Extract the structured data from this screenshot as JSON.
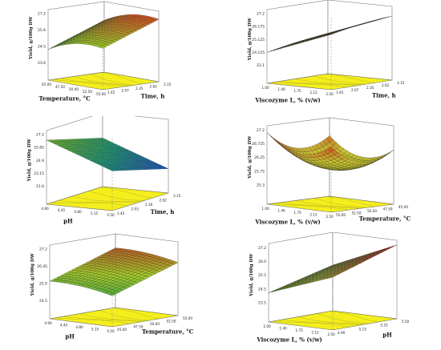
{
  "figure": {
    "panels": [
      {
        "id": "p1",
        "zlabel": "Yield, g/100g DW",
        "xlabel": "Temperature, °C",
        "ylabel": "Time, h",
        "zticks": [
          "27.2",
          "25.6",
          "24.5",
          "23.6"
        ],
        "xticks": [
          "55.00",
          "52.50",
          "50.00",
          "47.50",
          "45.00"
        ],
        "yticks": [
          "1.45",
          "2.07",
          "2.35",
          "2.62",
          "3.15"
        ],
        "colors": {
          "high": "#d9501c",
          "mid": "#9fcf25",
          "low": "#1d9a4e"
        },
        "chart_data": {
          "type": "surface",
          "zlim": [
            23.6,
            27.2
          ],
          "xlim": [
            45,
            55
          ],
          "ylim": [
            1.45,
            3.15
          ]
        }
      },
      {
        "id": "p2",
        "zlabel": "Yield, g/100g DW",
        "xlabel": "Viscozyme L, % (v/w)",
        "ylabel": "Time, h",
        "zticks": [
          "27.2",
          "26.175",
          "25.125",
          "24.125",
          "23.1"
        ],
        "xticks": [
          "2.50",
          "2.12",
          "1.75",
          "1.40",
          "1.00"
        ],
        "yticks": [
          "1.45",
          "2.07",
          "2.35",
          "2.62",
          "3.15"
        ],
        "colors": {
          "high": "#cc3b1c",
          "mid": "#b9d235",
          "low": "#1f9f6a"
        },
        "chart_data": {
          "type": "surface",
          "zlim": [
            23.1,
            27.2
          ],
          "xlim": [
            1.0,
            2.5
          ],
          "ylim": [
            1.45,
            3.15
          ]
        }
      },
      {
        "id": "p3",
        "zlabel": "Yield, g/100g DW",
        "xlabel": "pH",
        "ylabel": "Time, h",
        "zticks": [
          "27.2",
          "25.65",
          "24.9",
          "23.15",
          "21.6"
        ],
        "xticks": [
          "5.50",
          "5.15",
          "4.80",
          "4.45",
          "4.90"
        ],
        "yticks": [
          "1.45",
          "2.03",
          "2.30",
          "2.62",
          "3.15"
        ],
        "colors": {
          "high": "#7fc221",
          "mid": "#19a37a",
          "low": "#1a4bd8"
        },
        "chart_data": {
          "type": "surface",
          "zlim": [
            21.6,
            27.2
          ],
          "xlim": [
            4.45,
            5.5
          ],
          "ylim": [
            1.45,
            3.15
          ]
        }
      },
      {
        "id": "p4",
        "zlabel": "Yield, g/100g DW",
        "xlabel": "Viscozyme L, % (v/w)",
        "ylabel": "Temperature, °C",
        "zticks": [
          "27.2",
          "26.725",
          "26.25",
          "25.75",
          "25.3"
        ],
        "xticks": [
          "2.50",
          "2.12",
          "1.75",
          "1.40",
          "1.00"
        ],
        "yticks": [
          "55.00",
          "52.50",
          "50.00",
          "47.50",
          "45.00"
        ],
        "colors": {
          "high": "#c9321c",
          "mid": "#c9c430",
          "low": "#9aa420"
        },
        "chart_data": {
          "type": "surface",
          "zlim": [
            25.3,
            27.2
          ],
          "xlim": [
            1.0,
            2.5
          ],
          "ylim": [
            45,
            55
          ]
        }
      },
      {
        "id": "p5",
        "zlabel": "Yield, g/100g DW",
        "xlabel": "pH",
        "ylabel": "Temperature, °C",
        "zticks": [
          "27.2",
          "26.45",
          "25.0",
          "24.5"
        ],
        "xticks": [
          "5.50",
          "5.15",
          "4.80",
          "4.45",
          "4.90"
        ],
        "yticks": [
          "45.00",
          "47.50",
          "50.00",
          "52.50",
          "55.00"
        ],
        "colors": {
          "high": "#c63a1d",
          "mid": "#a8cf27",
          "low": "#1c9a4c"
        },
        "chart_data": {
          "type": "surface",
          "zlim": [
            24.5,
            27.2
          ],
          "xlim": [
            4.45,
            5.5
          ],
          "ylim": [
            45,
            55
          ]
        }
      },
      {
        "id": "p6",
        "zlabel": "Yield, g/100g DW",
        "xlabel": "Viscozyme L, % (v/w)",
        "ylabel": "pH",
        "zticks": [
          "27.2",
          "26.0",
          "25.5",
          "24.5",
          "23.5"
        ],
        "xticks": [
          "2.50",
          "2.12",
          "1.75",
          "1.40",
          "1.00"
        ],
        "yticks": [
          "4.90",
          "5.15",
          "5.25",
          "5.50"
        ],
        "colors": {
          "high": "#cd321b",
          "mid": "#b8d032",
          "low": "#5ca92a"
        },
        "chart_data": {
          "type": "surface",
          "zlim": [
            23.5,
            27.2
          ],
          "xlim": [
            1.0,
            2.5
          ],
          "ylim": [
            4.8,
            5.5
          ]
        }
      }
    ]
  }
}
